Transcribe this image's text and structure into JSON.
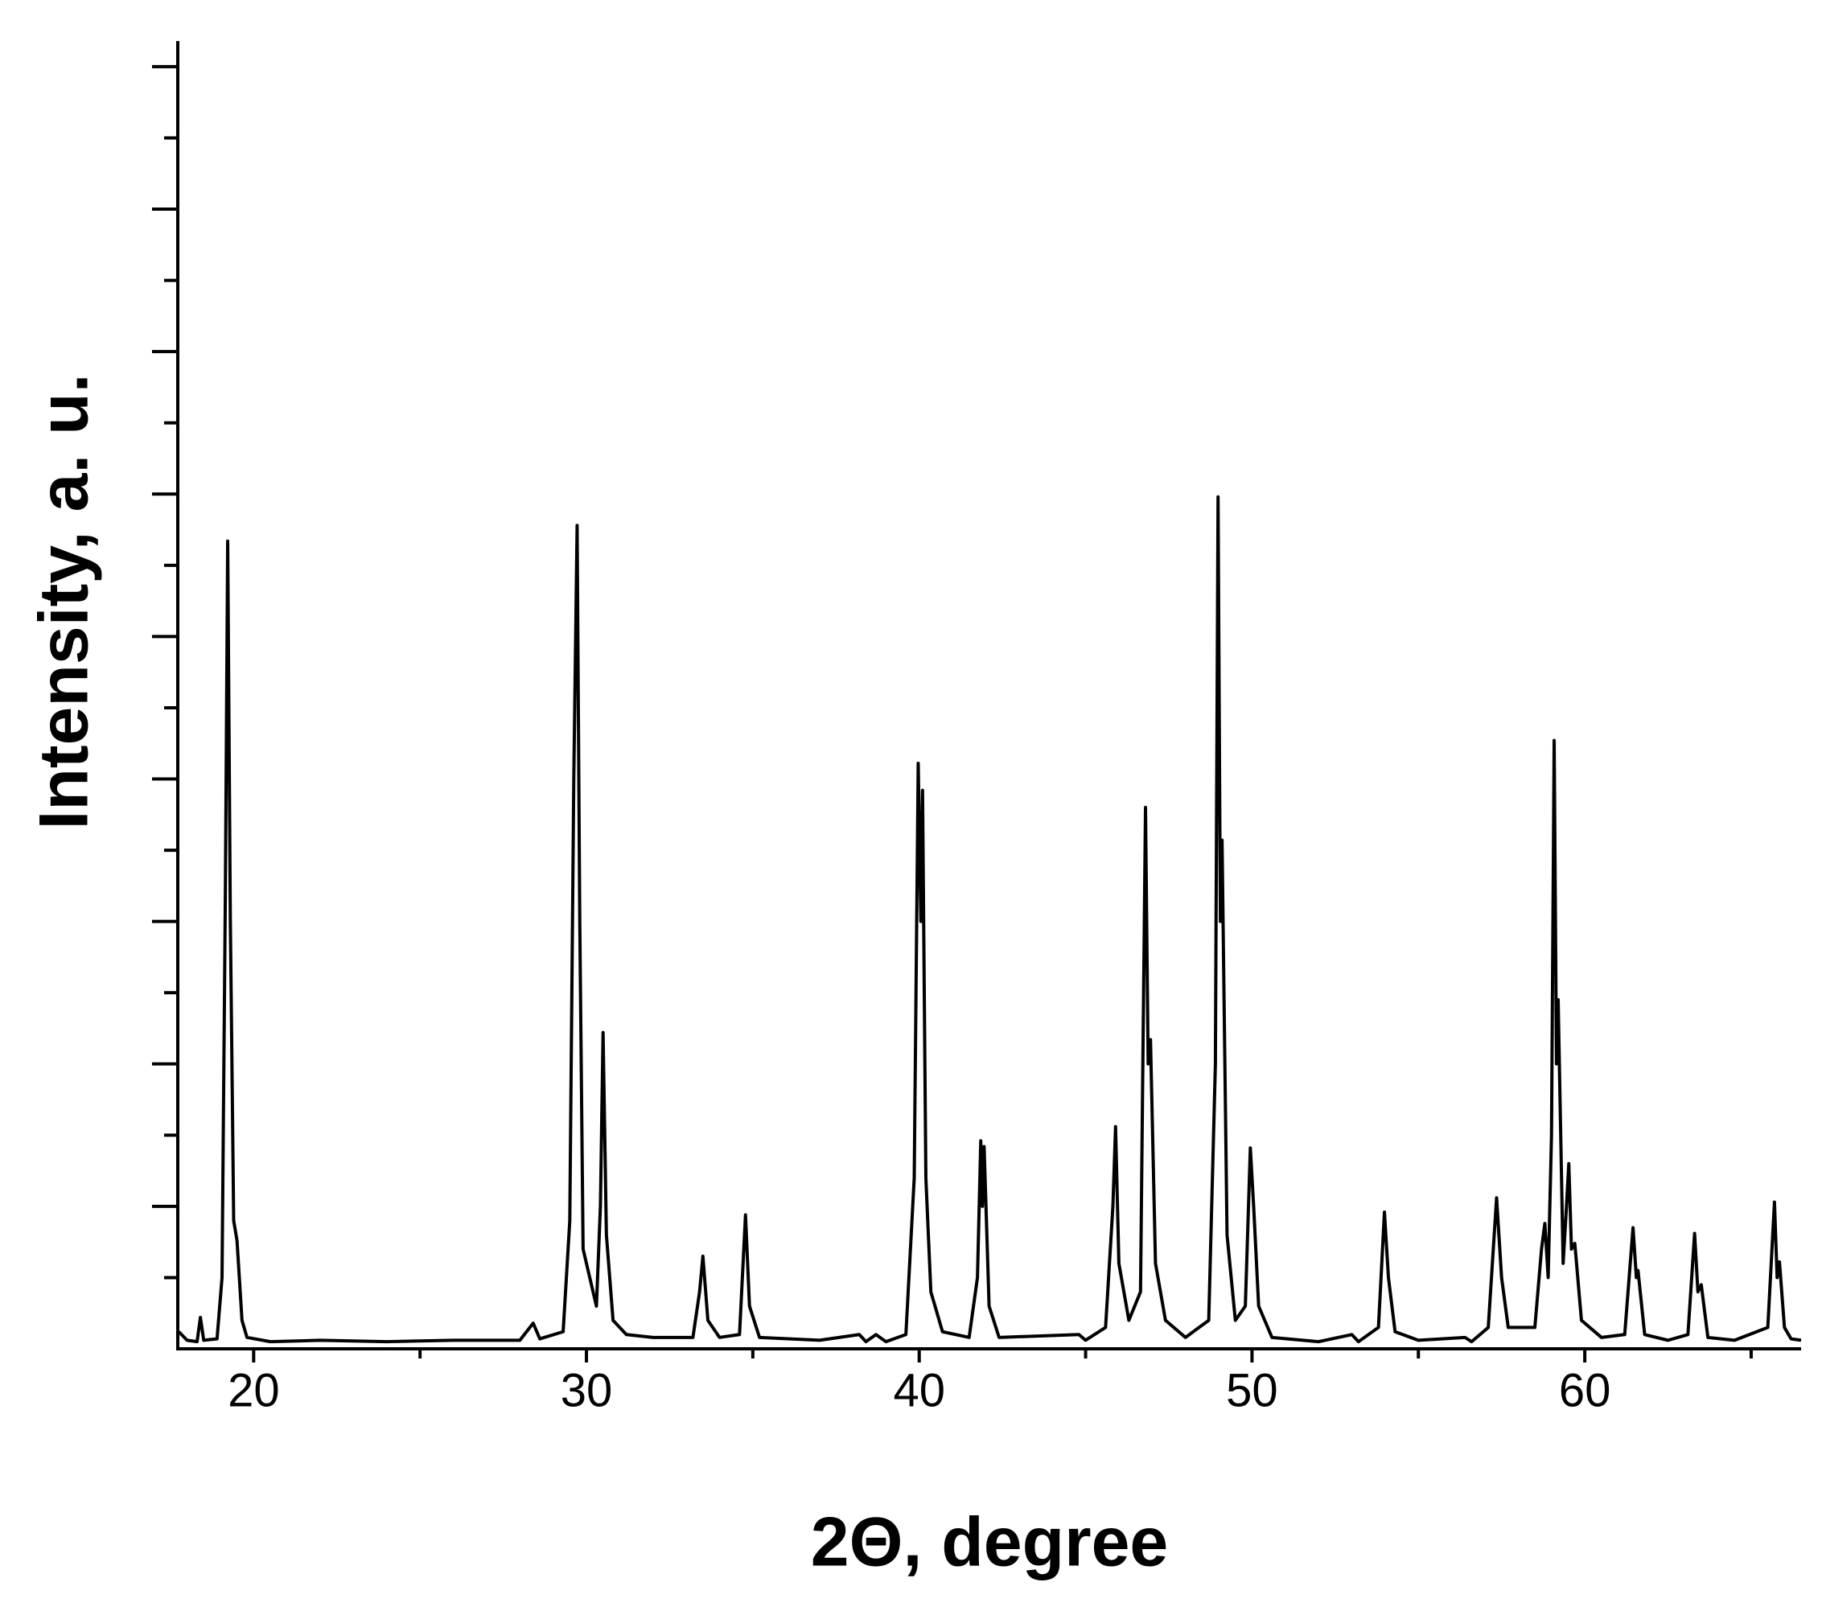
{
  "chart_data": {
    "type": "line",
    "xlabel": "2Θ, degree",
    "ylabel": "Intensity, a. u.",
    "xlim": [
      17.72,
      66.5
    ],
    "ylim": [
      0,
      9.18
    ],
    "xticks": [
      20,
      30,
      40,
      50,
      60
    ],
    "xminorticks": [
      25,
      35,
      45,
      55,
      65
    ],
    "yticks": [
      1,
      2,
      3,
      4,
      5,
      6,
      7,
      8,
      9
    ],
    "yminorticks": [
      0.5,
      1.5,
      2.5,
      3.5,
      4.5,
      5.5,
      6.5,
      7.5,
      8.5
    ],
    "color": "#000000",
    "x": [
      17.75,
      18.0,
      18.3,
      18.4,
      18.5,
      18.9,
      19.05,
      19.15,
      19.22,
      19.3,
      19.4,
      19.5,
      19.65,
      19.8,
      20.5,
      22,
      24,
      26,
      28,
      28.4,
      28.6,
      29.3,
      29.5,
      29.62,
      29.72,
      29.8,
      29.9,
      30.1,
      30.3,
      30.42,
      30.5,
      30.6,
      30.8,
      31.2,
      32,
      33.2,
      33.4,
      33.5,
      33.65,
      34.0,
      34.6,
      34.78,
      34.9,
      35.2,
      37,
      38.2,
      38.4,
      38.7,
      39.0,
      39.6,
      39.85,
      39.97,
      40.05,
      40.1,
      40.2,
      40.35,
      40.7,
      41.5,
      41.75,
      41.85,
      41.9,
      41.95,
      42.1,
      42.4,
      44.8,
      45.0,
      45.6,
      45.82,
      45.9,
      46.0,
      46.3,
      46.65,
      46.8,
      46.88,
      46.95,
      47.1,
      47.4,
      48.0,
      48.7,
      48.9,
      48.98,
      49.05,
      49.1,
      49.25,
      49.5,
      49.8,
      49.95,
      50.05,
      50.2,
      50.6,
      52,
      53.0,
      53.2,
      53.8,
      53.98,
      54.1,
      54.3,
      55,
      56.4,
      56.6,
      57.1,
      57.35,
      57.5,
      57.7,
      58.5,
      58.7,
      58.8,
      58.9,
      59.0,
      59.08,
      59.15,
      59.2,
      59.35,
      59.45,
      59.52,
      59.6,
      59.7,
      59.9,
      60.5,
      61.2,
      61.45,
      61.55,
      61.6,
      61.8,
      62.5,
      63.1,
      63.3,
      63.4,
      63.5,
      63.7,
      64.5,
      65.5,
      65.7,
      65.78,
      65.85,
      66.0,
      66.2,
      66.5
    ],
    "values": [
      0.12,
      0.06,
      0.05,
      0.22,
      0.06,
      0.07,
      0.5,
      3.2,
      5.67,
      3.0,
      0.9,
      0.76,
      0.2,
      0.08,
      0.05,
      0.06,
      0.05,
      0.06,
      0.06,
      0.18,
      0.07,
      0.12,
      0.9,
      4.0,
      5.78,
      3.0,
      0.7,
      0.5,
      0.3,
      1.0,
      2.22,
      0.8,
      0.2,
      0.1,
      0.08,
      0.08,
      0.4,
      0.65,
      0.2,
      0.08,
      0.1,
      0.94,
      0.3,
      0.08,
      0.06,
      0.1,
      0.05,
      0.1,
      0.05,
      0.1,
      1.2,
      4.11,
      3.0,
      3.92,
      1.2,
      0.4,
      0.12,
      0.08,
      0.5,
      1.46,
      1.0,
      1.42,
      0.3,
      0.08,
      0.1,
      0.06,
      0.15,
      1.0,
      1.56,
      0.6,
      0.2,
      0.4,
      3.8,
      2.0,
      2.17,
      0.6,
      0.2,
      0.08,
      0.2,
      2.0,
      5.98,
      3.0,
      3.57,
      0.8,
      0.2,
      0.3,
      1.41,
      1.0,
      0.3,
      0.08,
      0.05,
      0.1,
      0.05,
      0.15,
      0.96,
      0.5,
      0.12,
      0.06,
      0.08,
      0.05,
      0.15,
      1.06,
      0.5,
      0.15,
      0.15,
      0.7,
      0.88,
      0.5,
      1.5,
      4.27,
      2.0,
      2.45,
      0.6,
      1.0,
      1.3,
      0.7,
      0.74,
      0.2,
      0.08,
      0.1,
      0.85,
      0.5,
      0.55,
      0.1,
      0.06,
      0.1,
      0.81,
      0.4,
      0.45,
      0.08,
      0.06,
      0.15,
      1.03,
      0.5,
      0.61,
      0.15,
      0.07,
      0.06
    ]
  }
}
